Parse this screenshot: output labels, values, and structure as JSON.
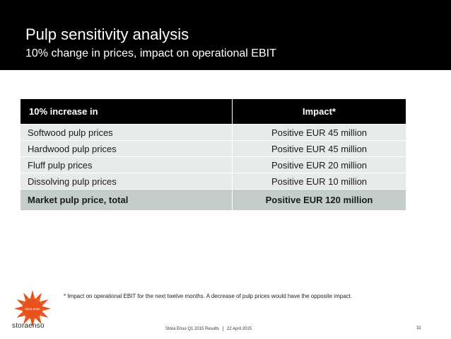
{
  "slide": {
    "title": "Pulp sensitivity analysis",
    "subtitle": "10% change in prices, impact on operational EBIT"
  },
  "table": {
    "headers": [
      "10% increase in",
      "Impact*"
    ],
    "rows": [
      [
        "Softwood pulp prices",
        "Positive EUR 45 million"
      ],
      [
        "Hardwood pulp prices",
        "Positive EUR 45 million"
      ],
      [
        "Fluff pulp prices",
        "Positive EUR 20 million"
      ],
      [
        "Dissolving pulp prices",
        "Positive EUR 10 million"
      ]
    ],
    "total": [
      "Market pulp price, total",
      "Positive EUR 120 million"
    ]
  },
  "footnote": "* Impact on operational EBIT for the next twelve months. A decrease of pulp prices would have the opposite impact.",
  "footer": {
    "company": "Stora Enso Q1 2015 Results",
    "date": "22 April 2015",
    "page": "32",
    "logo_text": "storaenso",
    "logo_badge": "stora enso"
  },
  "colors": {
    "header_bg": "#000000",
    "row_bg": "#e6ebe9",
    "total_bg": "#c3cec9",
    "logo_orange": "#e8531d"
  }
}
